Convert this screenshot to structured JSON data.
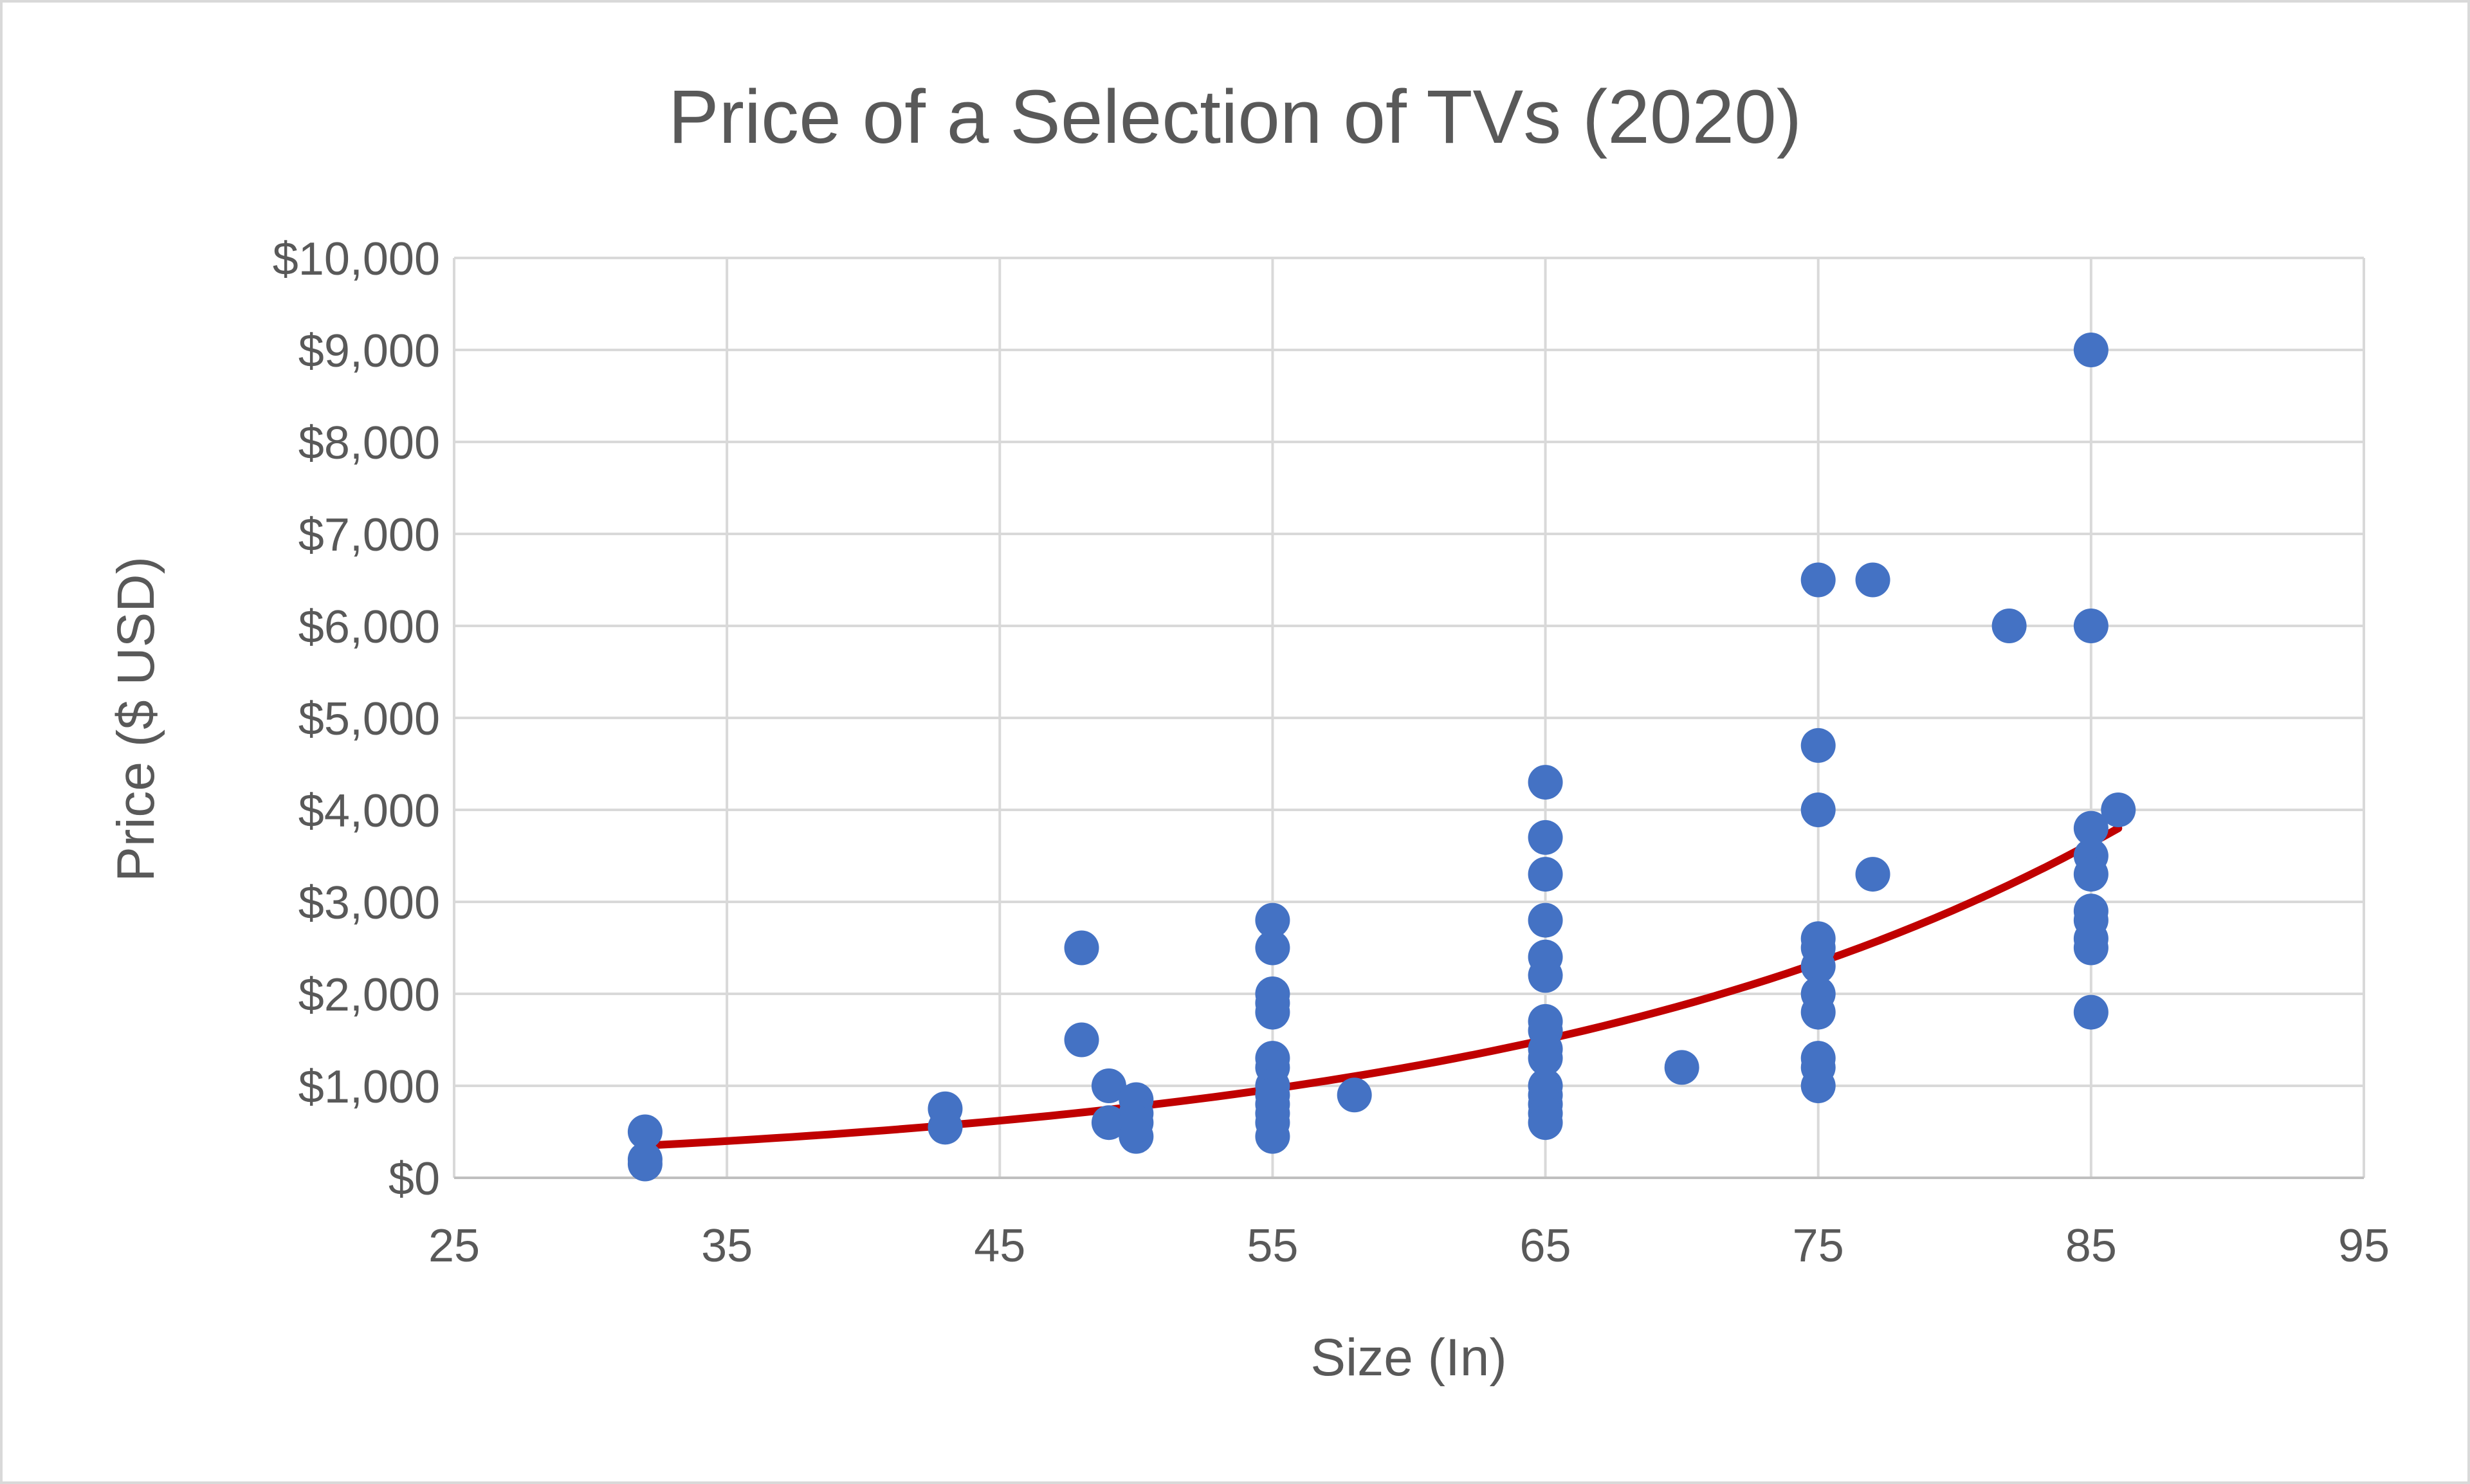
{
  "chart_data": {
    "type": "scatter",
    "title": "Price of a Selection of TVs (2020)",
    "xlabel": "Size (In)",
    "ylabel": "Price ($ USD)",
    "xlim": [
      25,
      95
    ],
    "ylim": [
      0,
      10000
    ],
    "x_ticks": [
      "25",
      "35",
      "45",
      "55",
      "65",
      "75",
      "85",
      "95"
    ],
    "y_ticks": [
      "$0",
      "$1,000",
      "$2,000",
      "$3,000",
      "$4,000",
      "$5,000",
      "$6,000",
      "$7,000",
      "$8,000",
      "$9,000",
      "$10,000"
    ],
    "x_tick_values": [
      25,
      35,
      45,
      55,
      65,
      75,
      85,
      95
    ],
    "y_tick_values": [
      0,
      1000,
      2000,
      3000,
      4000,
      5000,
      6000,
      7000,
      8000,
      9000,
      10000
    ],
    "grid": true,
    "legend": "none",
    "series": [
      {
        "type": "scatter",
        "color": "#4472c4",
        "points": [
          [
            32,
            500
          ],
          [
            32,
            200
          ],
          [
            32,
            150
          ],
          [
            43,
            750
          ],
          [
            43,
            550
          ],
          [
            48,
            2500
          ],
          [
            48,
            1500
          ],
          [
            49,
            1000
          ],
          [
            49,
            600
          ],
          [
            50,
            850
          ],
          [
            50,
            700
          ],
          [
            50,
            600
          ],
          [
            50,
            450
          ],
          [
            55,
            2800
          ],
          [
            55,
            2500
          ],
          [
            55,
            2000
          ],
          [
            55,
            1900
          ],
          [
            55,
            1800
          ],
          [
            55,
            1300
          ],
          [
            55,
            1200
          ],
          [
            55,
            1000
          ],
          [
            55,
            900
          ],
          [
            55,
            800
          ],
          [
            55,
            700
          ],
          [
            55,
            600
          ],
          [
            55,
            450
          ],
          [
            58,
            900
          ],
          [
            65,
            4300
          ],
          [
            65,
            3700
          ],
          [
            65,
            3300
          ],
          [
            65,
            2800
          ],
          [
            65,
            2400
          ],
          [
            65,
            2200
          ],
          [
            65,
            1700
          ],
          [
            65,
            1600
          ],
          [
            65,
            1400
          ],
          [
            65,
            1300
          ],
          [
            65,
            1000
          ],
          [
            65,
            900
          ],
          [
            65,
            800
          ],
          [
            65,
            700
          ],
          [
            65,
            600
          ],
          [
            70,
            1200
          ],
          [
            75,
            6500
          ],
          [
            75,
            4700
          ],
          [
            75,
            4000
          ],
          [
            75,
            2600
          ],
          [
            75,
            2500
          ],
          [
            75,
            2300
          ],
          [
            75,
            2000
          ],
          [
            75,
            1800
          ],
          [
            75,
            1300
          ],
          [
            75,
            1200
          ],
          [
            75,
            1000
          ],
          [
            77,
            6500
          ],
          [
            77,
            3300
          ],
          [
            82,
            6000
          ],
          [
            85,
            9000
          ],
          [
            85,
            6000
          ],
          [
            85,
            3800
          ],
          [
            85,
            3500
          ],
          [
            85,
            3300
          ],
          [
            85,
            2900
          ],
          [
            85,
            2800
          ],
          [
            85,
            2600
          ],
          [
            85,
            2500
          ],
          [
            85,
            1800
          ],
          [
            86,
            4000
          ]
        ]
      },
      {
        "type": "trendline-exponential",
        "color": "#c00000",
        "x_range": [
          32,
          86
        ],
        "y_start": 350,
        "y_end": 3800
      }
    ]
  }
}
